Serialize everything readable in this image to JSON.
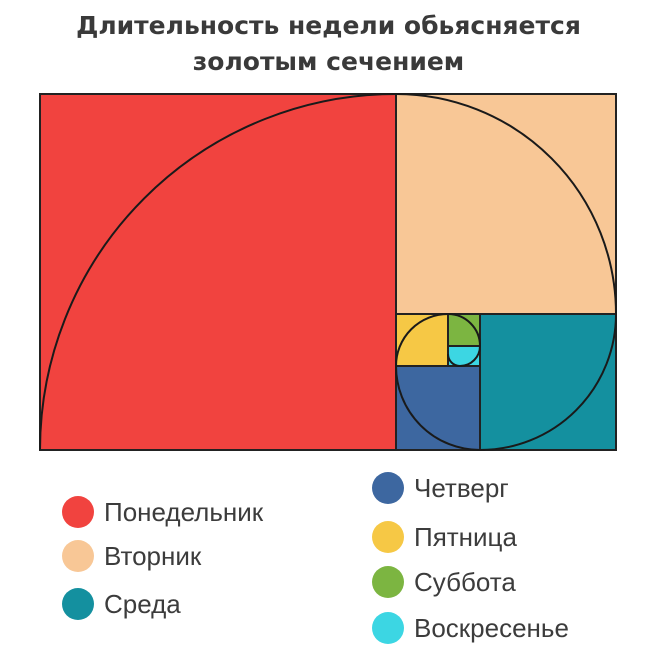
{
  "title": {
    "line1": "Длительность недели обьясняется",
    "line2": "золотым сечением"
  },
  "days": [
    {
      "key": "monday",
      "label": "Понедельник",
      "color": "#f1433f"
    },
    {
      "key": "tuesday",
      "label": "Вторник",
      "color": "#f8c796"
    },
    {
      "key": "wednesday",
      "label": "Среда",
      "color": "#14909f"
    },
    {
      "key": "thursday",
      "label": "Четверг",
      "color": "#3d67a0"
    },
    {
      "key": "friday",
      "label": "Пятница",
      "color": "#f6c845"
    },
    {
      "key": "saturday",
      "label": "Суббота",
      "color": "#7cb541"
    },
    {
      "key": "sunday",
      "label": "Воскресенье",
      "color": "#3cd6e3"
    }
  ]
}
